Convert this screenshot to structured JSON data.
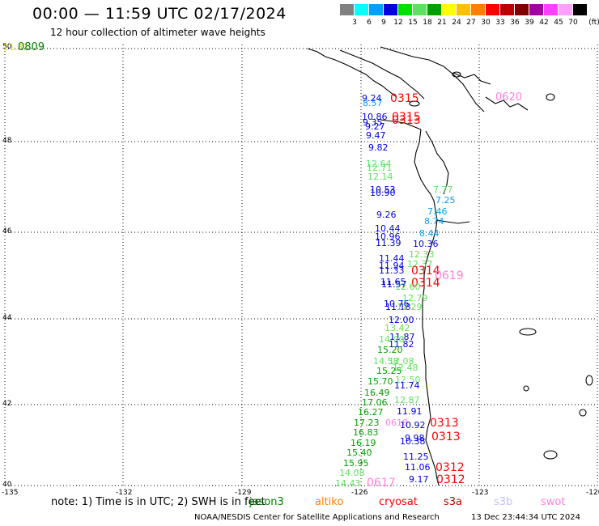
{
  "header": {
    "title": "00:00 — 11:59 UTC 02/17/2024",
    "subtitle": "12 hour collection of altimeter wave heights"
  },
  "legend": {
    "unit": "(ft)",
    "bins": [
      {
        "label": "3",
        "color": "#808080"
      },
      {
        "label": "6",
        "color": "#00ffff"
      },
      {
        "label": "9",
        "color": "#00a0ff"
      },
      {
        "label": "12",
        "color": "#0000e0"
      },
      {
        "label": "15",
        "color": "#00e000"
      },
      {
        "label": "18",
        "color": "#60e060"
      },
      {
        "label": "21",
        "color": "#00a000"
      },
      {
        "label": "24",
        "color": "#ffff00"
      },
      {
        "label": "27",
        "color": "#ffc000"
      },
      {
        "label": "30",
        "color": "#ff8000"
      },
      {
        "label": "33",
        "color": "#ff0000"
      },
      {
        "label": "36",
        "color": "#c00000"
      },
      {
        "label": "39",
        "color": "#800000"
      },
      {
        "label": "42",
        "color": "#a000a0"
      },
      {
        "label": "45",
        "color": "#ff40ff"
      },
      {
        "label": "70",
        "color": "#ffa0ff"
      },
      {
        "label": "",
        "color": "#000000"
      }
    ]
  },
  "axes": {
    "lon_labels": [
      "-135",
      "-132",
      "-129",
      "-126",
      "-123",
      "-120"
    ],
    "lat_labels": [
      "50",
      "48",
      "46",
      "44",
      "42",
      "40"
    ]
  },
  "observations": [
    {
      "text": "21.31",
      "color": "#e0e000"
    },
    {
      "text": "0809",
      "color": "#008000"
    },
    {
      "text": "9.24",
      "color": "#0000e0"
    },
    {
      "text": "8.57",
      "color": "#00a0ff"
    },
    {
      "text": "0315",
      "color": "#ff0000"
    },
    {
      "text": "0620",
      "color": "#ff80e0"
    },
    {
      "text": "10.86",
      "color": "#0000e0"
    },
    {
      "text": "9.35",
      "color": "#0000e0"
    },
    {
      "text": "0315",
      "color": "#ff0000"
    },
    {
      "text": "0313",
      "color": "#ff0000"
    },
    {
      "text": "9.27",
      "color": "#0000e0"
    },
    {
      "text": "9.47",
      "color": "#0000e0"
    },
    {
      "text": "9.82",
      "color": "#0000e0"
    },
    {
      "text": "12.64",
      "color": "#60e060"
    },
    {
      "text": "12.71",
      "color": "#60e060"
    },
    {
      "text": "12.14",
      "color": "#60e060"
    },
    {
      "text": "10.53",
      "color": "#0000e0"
    },
    {
      "text": "10.90",
      "color": "#0000e0"
    },
    {
      "text": "7.77",
      "color": "#60e060"
    },
    {
      "text": "7.25",
      "color": "#00a0ff"
    },
    {
      "text": "7.46",
      "color": "#00a0ff"
    },
    {
      "text": "9.26",
      "color": "#0000e0"
    },
    {
      "text": "8.74",
      "color": "#00a0ff"
    },
    {
      "text": "10.44",
      "color": "#0000e0"
    },
    {
      "text": "10.96",
      "color": "#0000e0"
    },
    {
      "text": "8.44",
      "color": "#00a0ff"
    },
    {
      "text": "11.39",
      "color": "#0000e0"
    },
    {
      "text": "10.36",
      "color": "#0000e0"
    },
    {
      "text": "12.33",
      "color": "#60e060"
    },
    {
      "text": "11.44",
      "color": "#0000e0"
    },
    {
      "text": "11.94",
      "color": "#0000e0"
    },
    {
      "text": "12.37",
      "color": "#60e060"
    },
    {
      "text": "11.33",
      "color": "#0000e0"
    },
    {
      "text": "0314",
      "color": "#ff0000"
    },
    {
      "text": "0619",
      "color": "#ff80e0"
    },
    {
      "text": "11.65",
      "color": "#0000e0"
    },
    {
      "text": "11.57",
      "color": "#0000e0"
    },
    {
      "text": "0314",
      "color": "#ff0000"
    },
    {
      "text": "12.60",
      "color": "#60e060"
    },
    {
      "text": "12.79",
      "color": "#60e060"
    },
    {
      "text": "10.76",
      "color": "#0000e0"
    },
    {
      "text": "11.18",
      "color": "#0000e0"
    },
    {
      "text": "12.29",
      "color": "#60e060"
    },
    {
      "text": "12.00",
      "color": "#0000e0"
    },
    {
      "text": "13.42",
      "color": "#60e060"
    },
    {
      "text": "11.87",
      "color": "#0000e0"
    },
    {
      "text": "14.00",
      "color": "#60e060"
    },
    {
      "text": "11.82",
      "color": "#0000e0"
    },
    {
      "text": "15.20",
      "color": "#00a000"
    },
    {
      "text": "14.58",
      "color": "#60e060"
    },
    {
      "text": "12.08",
      "color": "#60e060"
    },
    {
      "text": "12.48",
      "color": "#60e060"
    },
    {
      "text": "15.25",
      "color": "#00a000"
    },
    {
      "text": "12.50",
      "color": "#60e060"
    },
    {
      "text": "15.70",
      "color": "#00a000"
    },
    {
      "text": "11.74",
      "color": "#0000e0"
    },
    {
      "text": "16.49",
      "color": "#00a000"
    },
    {
      "text": "12.87",
      "color": "#60e060"
    },
    {
      "text": "17.06",
      "color": "#00a000"
    },
    {
      "text": "11.91",
      "color": "#0000e0"
    },
    {
      "text": "16.27",
      "color": "#00a000"
    },
    {
      "text": "17.23",
      "color": "#00a000"
    },
    {
      "text": "0618",
      "color": "#ff80e0"
    },
    {
      "text": "10.92",
      "color": "#0000e0"
    },
    {
      "text": "0313",
      "color": "#ff0000"
    },
    {
      "text": "16.83",
      "color": "#00a000"
    },
    {
      "text": "9.98",
      "color": "#0000e0"
    },
    {
      "text": "0313",
      "color": "#ff0000"
    },
    {
      "text": "16.19",
      "color": "#00a000"
    },
    {
      "text": "10.38",
      "color": "#0000e0"
    },
    {
      "text": "15.40",
      "color": "#00a000"
    },
    {
      "text": "11.25",
      "color": "#0000e0"
    },
    {
      "text": "15.95",
      "color": "#00a000"
    },
    {
      "text": "11.06",
      "color": "#0000e0"
    },
    {
      "text": "0312",
      "color": "#ff0000"
    },
    {
      "text": "14.08",
      "color": "#60e060"
    },
    {
      "text": "9.17",
      "color": "#0000e0"
    },
    {
      "text": "0312",
      "color": "#ff0000"
    },
    {
      "text": "14.43",
      "color": "#60e060"
    },
    {
      "text": "0617",
      "color": "#ff80e0"
    }
  ],
  "footer": {
    "note": "note:  1) Time is in UTC; 2) SWH is in feet",
    "satellites": [
      {
        "name": "jason3",
        "color": "#008000"
      },
      {
        "name": "altiko",
        "color": "#ff8000"
      },
      {
        "name": "cryosat",
        "color": "#ff0000"
      },
      {
        "name": "s3a",
        "color": "#c00000"
      },
      {
        "name": "s3b",
        "color": "#c0c0ff"
      },
      {
        "name": "swot",
        "color": "#ff80e0"
      }
    ],
    "credit": "NOAA/NESDIS Center for Satellite Applications and Research",
    "timestamp": "13 Dec 23:44:34 UTC 2024"
  }
}
